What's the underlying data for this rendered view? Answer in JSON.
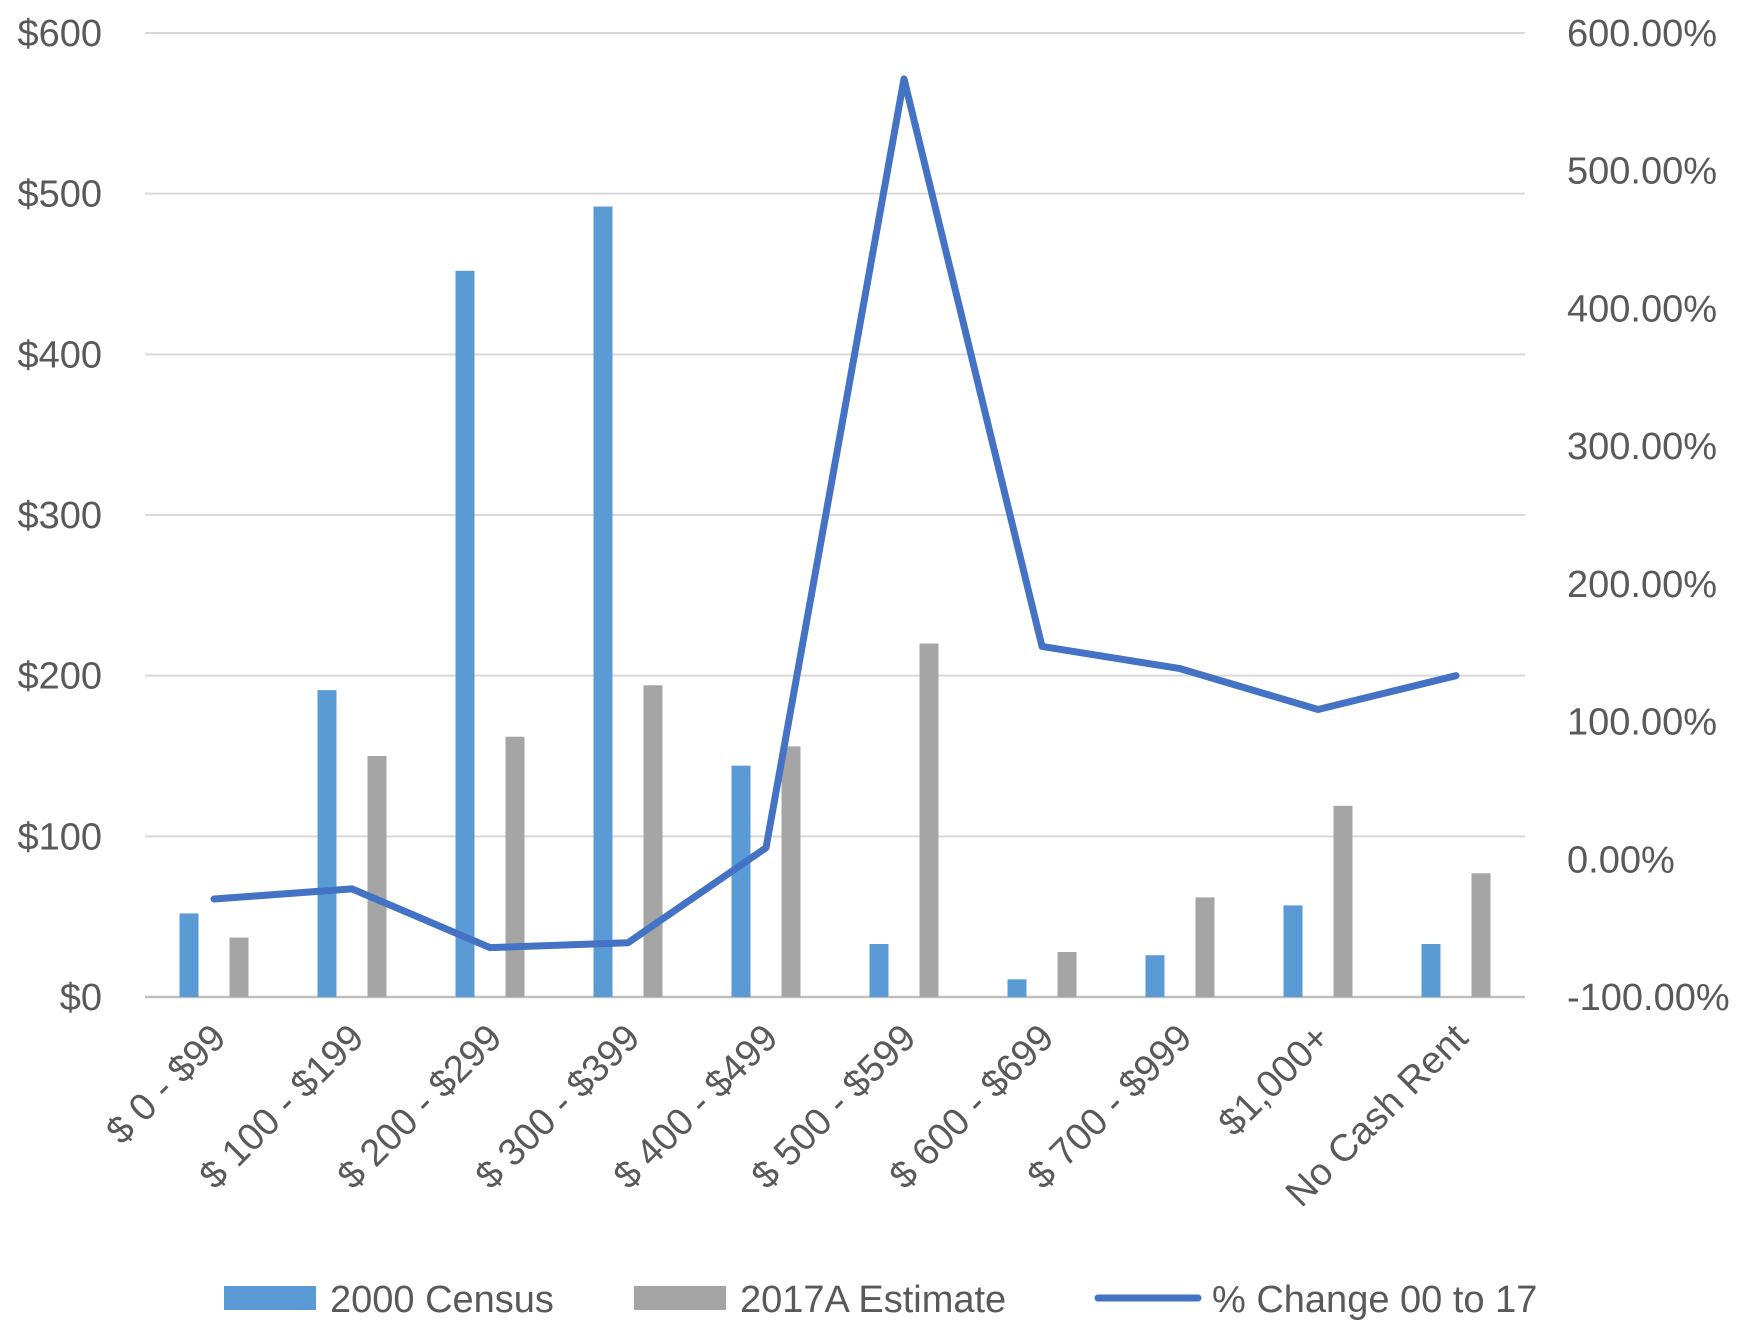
{
  "chart_data": {
    "type": "bar",
    "categories": [
      "$ 0 - $99",
      "$ 100 - $199",
      "$ 200 - $299",
      "$ 300 - $399",
      "$ 400 - $499",
      "$ 500 - $599",
      "$ 600 - $699",
      "$ 700 - $999",
      "$1,000+",
      "No Cash Rent"
    ],
    "series": [
      {
        "name": "2000 Census",
        "kind": "bar",
        "axis": "left",
        "color": "#5b9bd5",
        "values": [
          52,
          191,
          452,
          492,
          144,
          33,
          11,
          26,
          57,
          33
        ]
      },
      {
        "name": "2017A Estimate",
        "kind": "bar",
        "axis": "left",
        "color": "#a5a5a5",
        "values": [
          37,
          150,
          162,
          194,
          156,
          220,
          28,
          62,
          119,
          77
        ]
      },
      {
        "name": "% Change 00 to 17",
        "kind": "line",
        "axis": "right",
        "color": "#4472c4",
        "values": [
          -28.85,
          -21.47,
          -64.16,
          -60.57,
          8.33,
          566.67,
          154.55,
          138.46,
          108.77,
          133.33
        ]
      }
    ],
    "y_left": {
      "min": 0,
      "max": 600,
      "ticks": [
        "$0",
        "$100",
        "$200",
        "$300",
        "$400",
        "$500",
        "$600"
      ]
    },
    "y_right": {
      "min": -100,
      "max": 600,
      "ticks": [
        "-100.00%",
        "0.00%",
        "100.00%",
        "200.00%",
        "300.00%",
        "400.00%",
        "500.00%",
        "600.00%"
      ]
    },
    "grid": true,
    "legend_position": "bottom",
    "title": "",
    "xlabel": "",
    "ylabel": ""
  }
}
